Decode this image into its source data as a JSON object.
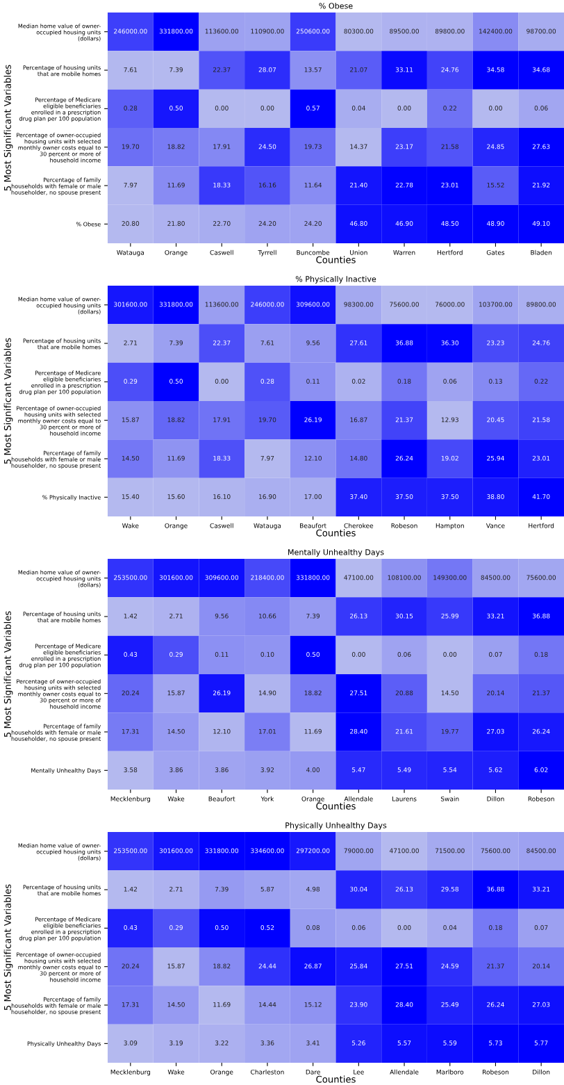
{
  "chart_data": [
    {
      "type": "heatmap",
      "title": "% Obese",
      "xlabel": "Counties",
      "ylabel": "5 Most Significant Variables",
      "categories": [
        "Watauga",
        "Orange",
        "Caswell",
        "Tyrrell",
        "Buncombe",
        "Union",
        "Warren",
        "Hertford",
        "Gates",
        "Bladen"
      ],
      "y_categories": [
        "Median home value of owner-\noccupied housing units\n(dollars)",
        "Percentage of housing units\nthat are mobile homes",
        "Percentage of Medicare\neligible beneficiaries\nenrolled in a prescription\ndrug plan per 100 population",
        "Percentage of owner-occupied\nhousing units with selected\nmonthly owner costs equal to\n30 percent or more of\nhousehold income",
        "Percentage of family\nhouseholds with female or male\nhouseholder, no spouse present",
        "% Obese"
      ],
      "cells": [
        [
          246000,
          331800,
          113600,
          110900,
          250600,
          80300,
          89500,
          89800,
          142400,
          98700
        ],
        [
          7.61,
          7.39,
          22.37,
          28.07,
          13.57,
          21.07,
          33.11,
          24.76,
          34.58,
          34.68
        ],
        [
          0.28,
          0.5,
          0.0,
          0.0,
          0.57,
          0.04,
          0.0,
          0.22,
          0.0,
          0.06
        ],
        [
          19.7,
          18.82,
          17.91,
          24.5,
          19.73,
          14.37,
          23.17,
          21.58,
          24.85,
          27.63
        ],
        [
          7.97,
          11.69,
          18.33,
          16.16,
          11.64,
          21.4,
          22.78,
          23.01,
          15.52,
          21.92
        ],
        [
          20.8,
          21.8,
          22.7,
          24.2,
          24.2,
          46.8,
          46.9,
          48.5,
          48.9,
          49.1
        ]
      ],
      "cell_labels": [
        [
          "246000.00",
          "331800.00",
          "113600.00",
          "110900.00",
          "250600.00",
          "80300.00",
          "89500.00",
          "89800.00",
          "142400.00",
          "98700.00"
        ],
        [
          "7.61",
          "7.39",
          "22.37",
          "28.07",
          "13.57",
          "21.07",
          "33.11",
          "24.76",
          "34.58",
          "34.68"
        ],
        [
          "0.28",
          "0.50",
          "0.00",
          "0.00",
          "0.57",
          "0.04",
          "0.00",
          "0.22",
          "0.00",
          "0.06"
        ],
        [
          "19.70",
          "18.82",
          "17.91",
          "24.50",
          "19.73",
          "14.37",
          "23.17",
          "21.58",
          "24.85",
          "27.63"
        ],
        [
          "7.97",
          "11.69",
          "18.33",
          "16.16",
          "11.64",
          "21.40",
          "22.78",
          "23.01",
          "15.52",
          "21.92"
        ],
        [
          "20.80",
          "21.80",
          "22.70",
          "24.20",
          "24.20",
          "46.80",
          "46.90",
          "48.50",
          "48.90",
          "49.10"
        ]
      ]
    },
    {
      "type": "heatmap",
      "title": "% Physically Inactive",
      "xlabel": "Counties",
      "ylabel": "5 Most Significant Variables",
      "categories": [
        "Wake",
        "Orange",
        "Caswell",
        "Watauga",
        "Beaufort",
        "Cherokee",
        "Robeson",
        "Hampton",
        "Vance",
        "Hertford"
      ],
      "y_categories": [
        "Median home value of owner-\noccupied housing units\n(dollars)",
        "Percentage of housing units\nthat are mobile homes",
        "Percentage of Medicare\neligible beneficiaries\nenrolled in a prescription\ndrug plan per 100 population",
        "Percentage of owner-occupied\nhousing units with selected\nmonthly owner costs equal to\n30 percent or more of\nhousehold income",
        "Percentage of family\nhouseholds with female or male\nhouseholder, no spouse present",
        "% Physically Inactive"
      ],
      "cells": [
        [
          301600,
          331800,
          113600,
          246000,
          309600,
          98300,
          75600,
          76000,
          103700,
          89800
        ],
        [
          2.71,
          7.39,
          22.37,
          7.61,
          9.56,
          27.61,
          36.88,
          36.3,
          23.23,
          24.76
        ],
        [
          0.29,
          0.5,
          0.0,
          0.28,
          0.11,
          0.02,
          0.18,
          0.06,
          0.13,
          0.22
        ],
        [
          15.87,
          18.82,
          17.91,
          19.7,
          26.19,
          16.87,
          21.37,
          12.93,
          20.45,
          21.58
        ],
        [
          14.5,
          11.69,
          18.33,
          7.97,
          12.1,
          14.8,
          26.24,
          19.02,
          25.94,
          23.01
        ],
        [
          15.4,
          15.6,
          16.1,
          16.9,
          17.0,
          37.4,
          37.5,
          37.5,
          38.8,
          41.7
        ]
      ],
      "cell_labels": [
        [
          "301600.00",
          "331800.00",
          "113600.00",
          "246000.00",
          "309600.00",
          "98300.00",
          "75600.00",
          "76000.00",
          "103700.00",
          "89800.00"
        ],
        [
          "2.71",
          "7.39",
          "22.37",
          "7.61",
          "9.56",
          "27.61",
          "36.88",
          "36.30",
          "23.23",
          "24.76"
        ],
        [
          "0.29",
          "0.50",
          "0.00",
          "0.28",
          "0.11",
          "0.02",
          "0.18",
          "0.06",
          "0.13",
          "0.22"
        ],
        [
          "15.87",
          "18.82",
          "17.91",
          "19.70",
          "26.19",
          "16.87",
          "21.37",
          "12.93",
          "20.45",
          "21.58"
        ],
        [
          "14.50",
          "11.69",
          "18.33",
          "7.97",
          "12.10",
          "14.80",
          "26.24",
          "19.02",
          "25.94",
          "23.01"
        ],
        [
          "15.40",
          "15.60",
          "16.10",
          "16.90",
          "17.00",
          "37.40",
          "37.50",
          "37.50",
          "38.80",
          "41.70"
        ]
      ]
    },
    {
      "type": "heatmap",
      "title": "Mentally Unhealthy Days",
      "xlabel": "Counties",
      "ylabel": "5 Most Significant Variables",
      "categories": [
        "Mecklenburg",
        "Wake",
        "Beaufort",
        "York",
        "Orange",
        "Allendale",
        "Laurens",
        "Swain",
        "Dillon",
        "Robeson"
      ],
      "y_categories": [
        "Median home value of owner-\noccupied housing units\n(dollars)",
        "Percentage of housing units\nthat are mobile homes",
        "Percentage of Medicare\neligible beneficiaries\nenrolled in a prescription\ndrug plan per 100 population",
        "Percentage of owner-occupied\nhousing units with selected\nmonthly owner costs equal to\n30 percent or more of\nhousehold income",
        "Percentage of family\nhouseholds with female or male\nhouseholder, no spouse present",
        "Mentally Unhealthy Days"
      ],
      "cells": [
        [
          253500,
          301600,
          309600,
          218400,
          331800,
          47100,
          108100,
          149300,
          84500,
          75600
        ],
        [
          1.42,
          2.71,
          9.56,
          10.66,
          7.39,
          26.13,
          30.15,
          25.99,
          33.21,
          36.88
        ],
        [
          0.43,
          0.29,
          0.11,
          0.1,
          0.5,
          0.0,
          0.06,
          0.0,
          0.07,
          0.18
        ],
        [
          20.24,
          15.87,
          26.19,
          14.9,
          18.82,
          27.51,
          20.88,
          14.5,
          20.14,
          21.37
        ],
        [
          17.31,
          14.5,
          12.1,
          17.01,
          11.69,
          28.4,
          21.61,
          19.77,
          27.03,
          26.24
        ],
        [
          3.58,
          3.86,
          3.86,
          3.92,
          4.0,
          5.47,
          5.49,
          5.54,
          5.62,
          6.02
        ]
      ],
      "cell_labels": [
        [
          "253500.00",
          "301600.00",
          "309600.00",
          "218400.00",
          "331800.00",
          "47100.00",
          "108100.00",
          "149300.00",
          "84500.00",
          "75600.00"
        ],
        [
          "1.42",
          "2.71",
          "9.56",
          "10.66",
          "7.39",
          "26.13",
          "30.15",
          "25.99",
          "33.21",
          "36.88"
        ],
        [
          "0.43",
          "0.29",
          "0.11",
          "0.10",
          "0.50",
          "0.00",
          "0.06",
          "0.00",
          "0.07",
          "0.18"
        ],
        [
          "20.24",
          "15.87",
          "26.19",
          "14.90",
          "18.82",
          "27.51",
          "20.88",
          "14.50",
          "20.14",
          "21.37"
        ],
        [
          "17.31",
          "14.50",
          "12.10",
          "17.01",
          "11.69",
          "28.40",
          "21.61",
          "19.77",
          "27.03",
          "26.24"
        ],
        [
          "3.58",
          "3.86",
          "3.86",
          "3.92",
          "4.00",
          "5.47",
          "5.49",
          "5.54",
          "5.62",
          "6.02"
        ]
      ]
    },
    {
      "type": "heatmap",
      "title": "Physically Unhealthy Days",
      "xlabel": "Counties",
      "ylabel": "5 Most Significant Variables",
      "categories": [
        "Mecklenburg",
        "Wake",
        "Orange",
        "Charleston",
        "Dare",
        "Lee",
        "Allendale",
        "Marlboro",
        "Robeson",
        "Dillon"
      ],
      "y_categories": [
        "Median home value of owner-\noccupied housing units\n(dollars)",
        "Percentage of housing units\nthat are mobile homes",
        "Percentage of Medicare\neligible beneficiaries\nenrolled in a prescription\ndrug plan per 100 population",
        "Percentage of owner-occupied\nhousing units with selected\nmonthly owner costs equal to\n30 percent or more of\nhousehold income",
        "Percentage of family\nhouseholds with female or male\nhouseholder, no spouse present",
        "Physically Unhealthy Days"
      ],
      "cells": [
        [
          253500,
          301600,
          331800,
          334600,
          297200,
          79000,
          47100,
          71500,
          75600,
          84500
        ],
        [
          1.42,
          2.71,
          7.39,
          5.87,
          4.98,
          30.04,
          26.13,
          29.58,
          36.88,
          33.21
        ],
        [
          0.43,
          0.29,
          0.5,
          0.52,
          0.08,
          0.06,
          0.0,
          0.04,
          0.18,
          0.07
        ],
        [
          20.24,
          15.87,
          18.82,
          24.44,
          26.87,
          25.84,
          27.51,
          24.59,
          21.37,
          20.14
        ],
        [
          17.31,
          14.5,
          11.69,
          14.44,
          15.12,
          23.9,
          28.4,
          25.49,
          26.24,
          27.03
        ],
        [
          3.09,
          3.19,
          3.22,
          3.36,
          3.41,
          5.26,
          5.57,
          5.59,
          5.73,
          5.77
        ]
      ],
      "cell_labels": [
        [
          "253500.00",
          "301600.00",
          "331800.00",
          "334600.00",
          "297200.00",
          "79000.00",
          "47100.00",
          "71500.00",
          "75600.00",
          "84500.00"
        ],
        [
          "1.42",
          "2.71",
          "7.39",
          "5.87",
          "4.98",
          "30.04",
          "26.13",
          "29.58",
          "36.88",
          "33.21"
        ],
        [
          "0.43",
          "0.29",
          "0.50",
          "0.52",
          "0.08",
          "0.06",
          "0.00",
          "0.04",
          "0.18",
          "0.07"
        ],
        [
          "20.24",
          "15.87",
          "18.82",
          "24.44",
          "26.87",
          "25.84",
          "27.51",
          "24.59",
          "21.37",
          "20.14"
        ],
        [
          "17.31",
          "14.50",
          "11.69",
          "14.44",
          "15.12",
          "23.90",
          "28.40",
          "25.49",
          "26.24",
          "27.03"
        ],
        [
          "3.09",
          "3.19",
          "3.22",
          "3.36",
          "3.41",
          "5.26",
          "5.57",
          "5.59",
          "5.73",
          "5.77"
        ]
      ]
    }
  ]
}
